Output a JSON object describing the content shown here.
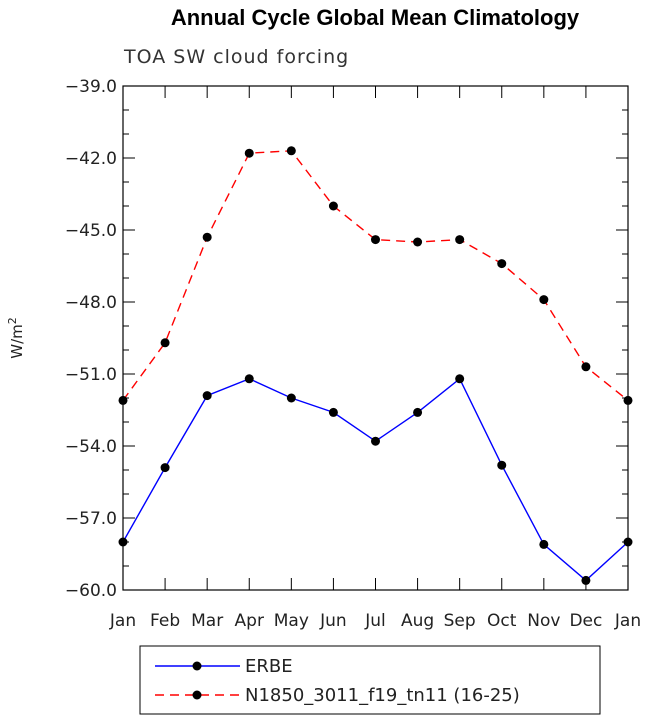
{
  "title": "Annual Cycle Global Mean Climatology",
  "chart_data": {
    "type": "line",
    "title": "Annual Cycle Global Mean Climatology",
    "subtitle": "TOA SW cloud forcing",
    "xlabel": "",
    "ylabel_base": "W/m",
    "ylabel_sup": "2",
    "categories": [
      "Jan",
      "Feb",
      "Mar",
      "Apr",
      "May",
      "Jun",
      "Jul",
      "Aug",
      "Sep",
      "Oct",
      "Nov",
      "Dec",
      "Jan"
    ],
    "yticks": [
      "-39.0",
      "-42.0",
      "-45.0",
      "-48.0",
      "-51.0",
      "-54.0",
      "-57.0",
      "-60.0"
    ],
    "ylim": [
      -60.0,
      -39.0
    ],
    "series": [
      {
        "name": "ERBE",
        "color": "#0000ff",
        "dash": "solid",
        "values": [
          -58.0,
          -54.9,
          -51.9,
          -51.2,
          -52.0,
          -52.6,
          -53.8,
          -52.6,
          -51.2,
          -54.8,
          -58.1,
          -59.6,
          -58.0
        ]
      },
      {
        "name": "N1850_3011_f19_tn11 (16-25)",
        "color": "#ff0000",
        "dash": "dashed",
        "values": [
          -52.1,
          -49.7,
          -45.3,
          -41.8,
          -41.7,
          -44.0,
          -45.4,
          -45.5,
          -45.4,
          -46.4,
          -47.9,
          -50.7,
          -52.1
        ]
      }
    ],
    "legend_position": "bottom"
  }
}
